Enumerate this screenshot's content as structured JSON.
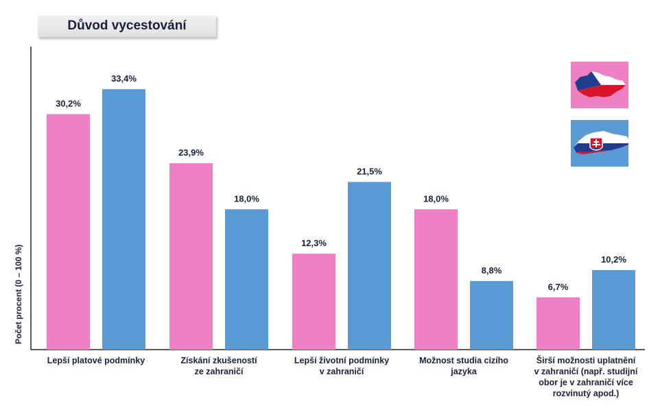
{
  "title": "Důvod vycestování",
  "colors": {
    "czech": "#ee80c4",
    "slovak": "#5b9bd5",
    "text": "#1a1f3c",
    "axis": "#222222"
  },
  "legend": [
    {
      "icon": "czech-republic-map-flag-icon",
      "bg": "#ee80c4"
    },
    {
      "icon": "slovakia-map-flag-icon",
      "bg": "#5b9bd5"
    }
  ],
  "chart_data": {
    "type": "bar",
    "title": "Důvod vycestování",
    "ylabel": "Počet procent  (0 – 100 %)",
    "xlabel": "",
    "ylim": [
      0,
      40
    ],
    "grid": false,
    "legend_position": "top-right",
    "categories": [
      "Lepší platové podmínky",
      "Získání zkušeností\nze zahraničí",
      "Lepší životní podmínky\nv zahraničí",
      "Možnost studia cizího\njazyka",
      "Širší možnosti uplatnění\nv zahraničí (např. studijní\nobor je v zahraničí více\nrozvinutý apod.)"
    ],
    "series": [
      {
        "values": [
          30.2,
          23.9,
          12.3,
          18.0,
          6.7
        ],
        "labels": [
          "30,2%",
          "23,9%",
          "12,3%",
          "18,0%",
          "6,7%"
        ]
      },
      {
        "values": [
          33.4,
          18.0,
          21.5,
          8.8,
          10.2
        ],
        "labels": [
          "33,4%",
          "18,0%",
          "21,5%",
          "8,8%",
          "10,2%"
        ]
      }
    ]
  }
}
